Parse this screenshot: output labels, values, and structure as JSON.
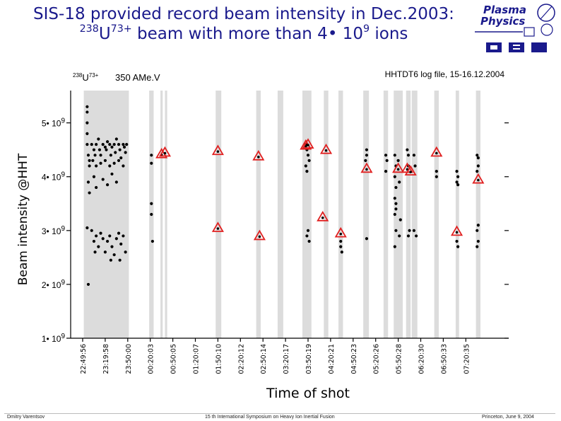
{
  "title": {
    "line1": "SIS-18 provided record beam intensity in Dec.2003:",
    "line2_mass": "238",
    "line2_element": "U",
    "line2_charge": "73+",
    "line2_text": " beam with more than 4• 10",
    "line2_exp": "9",
    "line2_tail": " ions"
  },
  "logo": {
    "line1": "Plasma",
    "line2": "Physics"
  },
  "footer": {
    "left": "Dmitry Varentsov",
    "middle": "15 th International Symposium on Heavy Ion Inertial Fusion",
    "right": "Princeton, June 9, 2004"
  },
  "colors": {
    "title": "#1a1a8c",
    "band": "#dcdcdc",
    "marker": "#e02020",
    "dots": "#000000"
  },
  "chart_data": {
    "type": "scatter",
    "ylabel": "Beam intensity @HHT",
    "xlabel": "Time of shot",
    "annotation_left_mass": "238",
    "annotation_left_element": "U",
    "annotation_left_charge": "73+",
    "annotation_left_energy": "350 AMe.V",
    "annotation_right": "HHTDT6 log file, 15-16.12.2004",
    "yticks": [
      {
        "value": 5,
        "label": "5• 10",
        "exp": "9"
      },
      {
        "value": 4,
        "label": "4• 10",
        "exp": "9"
      },
      {
        "value": 3,
        "label": "3• 10",
        "exp": "9"
      },
      {
        "value": 2,
        "label": "2• 10",
        "exp": "9"
      },
      {
        "value": 1,
        "label": "1• 10",
        "exp": "9"
      }
    ],
    "ylim": [
      1,
      5.6
    ],
    "y_unit_exponent": 9,
    "xticks": [
      "22:49:56",
      "23:19:58",
      "23:50:00",
      "00:20:03",
      "00:50:05",
      "01:20:07",
      "01:50:10",
      "02:20:12",
      "02:50:14",
      "03:20:17",
      "03:50:19",
      "04:20:21",
      "04:50:23",
      "05:20:26",
      "05:50:28",
      "06:20:30",
      "06:50:33",
      "07:20:35"
    ],
    "bands": [
      [
        0.05,
        2.05
      ],
      [
        2.95,
        3.15
      ],
      [
        3.45,
        3.55
      ],
      [
        3.65,
        3.75
      ],
      [
        5.9,
        6.15
      ],
      [
        7.7,
        7.9
      ],
      [
        8.65,
        8.9
      ],
      [
        9.75,
        10.15
      ],
      [
        10.7,
        10.9
      ],
      [
        11.35,
        11.55
      ],
      [
        12.45,
        12.7
      ],
      [
        13.35,
        13.55
      ],
      [
        13.8,
        14.2
      ],
      [
        14.35,
        14.55
      ],
      [
        14.6,
        14.85
      ],
      [
        15.6,
        15.8
      ],
      [
        16.55,
        16.7
      ],
      [
        17.45,
        17.65
      ]
    ],
    "markers": [
      {
        "x": 3.5,
        "y": 4.42
      },
      {
        "x": 3.65,
        "y": 4.45
      },
      {
        "x": 6.0,
        "y": 4.48
      },
      {
        "x": 7.8,
        "y": 4.38
      },
      {
        "x": 7.85,
        "y": 2.9
      },
      {
        "x": 6.0,
        "y": 3.05
      },
      {
        "x": 9.9,
        "y": 4.58
      },
      {
        "x": 10.0,
        "y": 4.6
      },
      {
        "x": 10.8,
        "y": 4.5
      },
      {
        "x": 10.65,
        "y": 3.25
      },
      {
        "x": 11.45,
        "y": 2.95
      },
      {
        "x": 12.6,
        "y": 4.15
      },
      {
        "x": 14.0,
        "y": 4.15
      },
      {
        "x": 14.4,
        "y": 4.15
      },
      {
        "x": 14.55,
        "y": 4.1
      },
      {
        "x": 15.7,
        "y": 4.45
      },
      {
        "x": 16.6,
        "y": 2.98
      },
      {
        "x": 17.55,
        "y": 3.95
      }
    ],
    "points": [
      [
        0.2,
        5.3
      ],
      [
        0.2,
        5.2
      ],
      [
        0.2,
        5.0
      ],
      [
        0.2,
        4.8
      ],
      [
        0.2,
        4.6
      ],
      [
        0.25,
        4.4
      ],
      [
        0.3,
        4.2
      ],
      [
        0.25,
        3.9
      ],
      [
        0.3,
        3.7
      ],
      [
        0.2,
        3.05
      ],
      [
        0.25,
        2.0
      ],
      [
        0.3,
        4.3
      ],
      [
        0.4,
        4.6
      ],
      [
        0.5,
        4.5
      ],
      [
        0.55,
        4.4
      ],
      [
        0.6,
        4.6
      ],
      [
        0.7,
        4.7
      ],
      [
        0.75,
        4.5
      ],
      [
        0.8,
        4.4
      ],
      [
        0.9,
        4.6
      ],
      [
        1.0,
        4.55
      ],
      [
        1.05,
        4.5
      ],
      [
        1.1,
        4.65
      ],
      [
        1.2,
        4.6
      ],
      [
        1.25,
        4.4
      ],
      [
        1.3,
        4.55
      ],
      [
        1.4,
        4.6
      ],
      [
        1.45,
        4.45
      ],
      [
        1.5,
        4.7
      ],
      [
        1.6,
        4.6
      ],
      [
        1.65,
        4.5
      ],
      [
        1.7,
        4.35
      ],
      [
        1.8,
        4.6
      ],
      [
        1.85,
        4.55
      ],
      [
        1.9,
        4.45
      ],
      [
        1.95,
        4.6
      ],
      [
        0.45,
        4.3
      ],
      [
        0.6,
        4.2
      ],
      [
        0.8,
        4.25
      ],
      [
        1.0,
        4.3
      ],
      [
        1.2,
        4.2
      ],
      [
        1.4,
        4.25
      ],
      [
        1.6,
        4.3
      ],
      [
        1.8,
        4.2
      ],
      [
        0.5,
        4.0
      ],
      [
        0.9,
        3.95
      ],
      [
        1.3,
        4.05
      ],
      [
        0.6,
        3.8
      ],
      [
        1.1,
        3.85
      ],
      [
        1.5,
        3.9
      ],
      [
        0.4,
        3.0
      ],
      [
        0.5,
        2.8
      ],
      [
        0.6,
        2.9
      ],
      [
        0.7,
        2.7
      ],
      [
        0.8,
        2.95
      ],
      [
        0.9,
        2.85
      ],
      [
        1.0,
        2.6
      ],
      [
        1.1,
        2.8
      ],
      [
        1.2,
        2.9
      ],
      [
        1.3,
        2.7
      ],
      [
        1.4,
        2.55
      ],
      [
        1.5,
        2.85
      ],
      [
        1.6,
        2.95
      ],
      [
        1.7,
        2.75
      ],
      [
        1.8,
        2.9
      ],
      [
        1.9,
        2.6
      ],
      [
        0.55,
        2.6
      ],
      [
        1.25,
        2.45
      ],
      [
        1.65,
        2.45
      ],
      [
        3.05,
        4.4
      ],
      [
        3.05,
        4.25
      ],
      [
        3.05,
        3.5
      ],
      [
        3.05,
        3.3
      ],
      [
        3.1,
        2.8
      ],
      [
        9.9,
        4.6
      ],
      [
        9.95,
        4.5
      ],
      [
        10.0,
        4.4
      ],
      [
        9.9,
        4.2
      ],
      [
        9.95,
        4.1
      ],
      [
        10.05,
        4.3
      ],
      [
        10.0,
        3.0
      ],
      [
        9.95,
        2.9
      ],
      [
        10.05,
        2.8
      ],
      [
        11.45,
        2.8
      ],
      [
        11.45,
        2.7
      ],
      [
        11.5,
        2.6
      ],
      [
        12.6,
        4.5
      ],
      [
        12.6,
        4.4
      ],
      [
        12.55,
        4.3
      ],
      [
        12.6,
        2.85
      ],
      [
        13.45,
        4.4
      ],
      [
        13.5,
        4.3
      ],
      [
        13.45,
        4.1
      ],
      [
        13.85,
        4.4
      ],
      [
        13.9,
        4.2
      ],
      [
        13.85,
        4.0
      ],
      [
        13.9,
        3.8
      ],
      [
        13.85,
        3.6
      ],
      [
        13.9,
        3.5
      ],
      [
        13.9,
        3.4
      ],
      [
        13.85,
        3.3
      ],
      [
        13.9,
        3.0
      ],
      [
        13.85,
        2.7
      ],
      [
        14.0,
        4.3
      ],
      [
        14.05,
        3.9
      ],
      [
        14.1,
        3.2
      ],
      [
        14.05,
        2.9
      ],
      [
        14.4,
        4.5
      ],
      [
        14.45,
        4.4
      ],
      [
        14.45,
        4.2
      ],
      [
        14.5,
        3.0
      ],
      [
        14.45,
        2.9
      ],
      [
        14.7,
        4.4
      ],
      [
        14.75,
        4.2
      ],
      [
        14.7,
        3.0
      ],
      [
        14.8,
        2.9
      ],
      [
        15.7,
        4.1
      ],
      [
        15.7,
        4.0
      ],
      [
        16.6,
        4.1
      ],
      [
        16.65,
        4.0
      ],
      [
        16.6,
        3.9
      ],
      [
        16.65,
        3.85
      ],
      [
        16.6,
        2.8
      ],
      [
        16.65,
        2.7
      ],
      [
        17.5,
        4.4
      ],
      [
        17.55,
        4.35
      ],
      [
        17.55,
        4.2
      ],
      [
        17.5,
        4.1
      ],
      [
        17.55,
        3.1
      ],
      [
        17.5,
        3.0
      ],
      [
        17.55,
        2.8
      ],
      [
        17.5,
        2.7
      ]
    ]
  }
}
